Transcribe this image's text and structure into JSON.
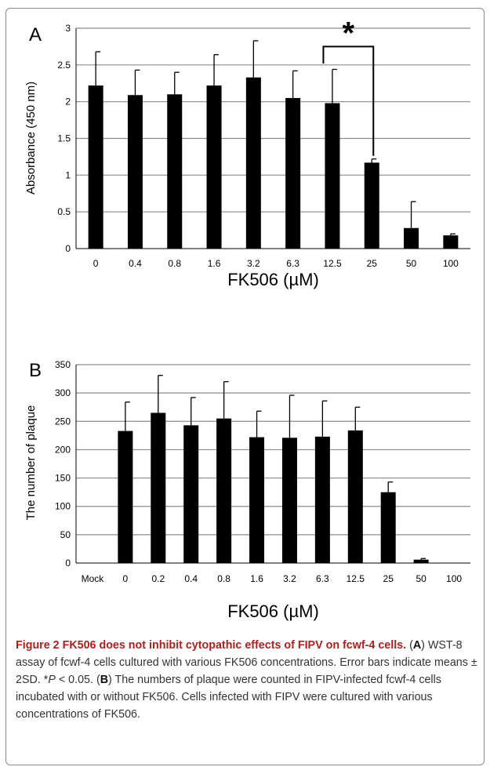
{
  "chart_data": [
    {
      "type": "bar",
      "panel_label": "A",
      "xlabel": "FK506 (µM)",
      "ylabel": "Absorbance (450 nm)",
      "ylim": [
        0,
        3
      ],
      "yticks": [
        "0",
        "0.5",
        "1",
        "1.5",
        "2",
        "2.5",
        "3"
      ],
      "ytick_values": [
        0,
        0.5,
        1,
        1.5,
        2,
        2.5,
        3
      ],
      "grid": true,
      "categories": [
        "0",
        "0.4",
        "0.8",
        "1.6",
        "3.2",
        "6.3",
        "12.5",
        "25",
        "50",
        "100"
      ],
      "values": [
        2.22,
        2.09,
        2.1,
        2.22,
        2.33,
        2.05,
        1.98,
        1.17,
        0.28,
        0.18
      ],
      "errors": [
        0.46,
        0.34,
        0.3,
        0.42,
        0.5,
        0.37,
        0.46,
        0.05,
        0.36,
        0.02
      ],
      "significance": {
        "from": "12.5",
        "to": "25",
        "label": "*"
      }
    },
    {
      "type": "bar",
      "panel_label": "B",
      "xlabel": "FK506 (µM)",
      "ylabel": "The number of plaque",
      "ylim": [
        0,
        350
      ],
      "yticks": [
        "0",
        "50",
        "100",
        "150",
        "200",
        "250",
        "300",
        "350"
      ],
      "ytick_values": [
        0,
        50,
        100,
        150,
        200,
        250,
        300,
        350
      ],
      "grid": true,
      "categories": [
        "Mock",
        "0",
        "0.2",
        "0.4",
        "0.8",
        "1.6",
        "3.2",
        "6.3",
        "12.5",
        "25",
        "50",
        "100"
      ],
      "values": [
        0,
        233,
        265,
        243,
        255,
        222,
        221,
        223,
        234,
        125,
        6,
        0
      ],
      "errors": [
        0,
        51,
        66,
        49,
        65,
        46,
        75,
        63,
        41,
        18,
        2,
        0
      ]
    }
  ],
  "caption": {
    "title": "Figure 2 FK506 does not inhibit cytopathic effects of FIPV on fcwf-4 cells.",
    "text_1": " (",
    "ref_a": "A",
    "text_2": ") WST-8 assay of fcwf-4 cells cultured with various FK506 concentrations. Error bars indicate means ± 2SD. *",
    "p_var": "P",
    "text_3": " < 0.05. (",
    "ref_b": "B",
    "text_4": ") The numbers of plaque were counted in FIPV-infected fcwf-4 cells incubated with or without FK506. Cells infected with FIPV were cultured with various concentrations of FK506."
  }
}
